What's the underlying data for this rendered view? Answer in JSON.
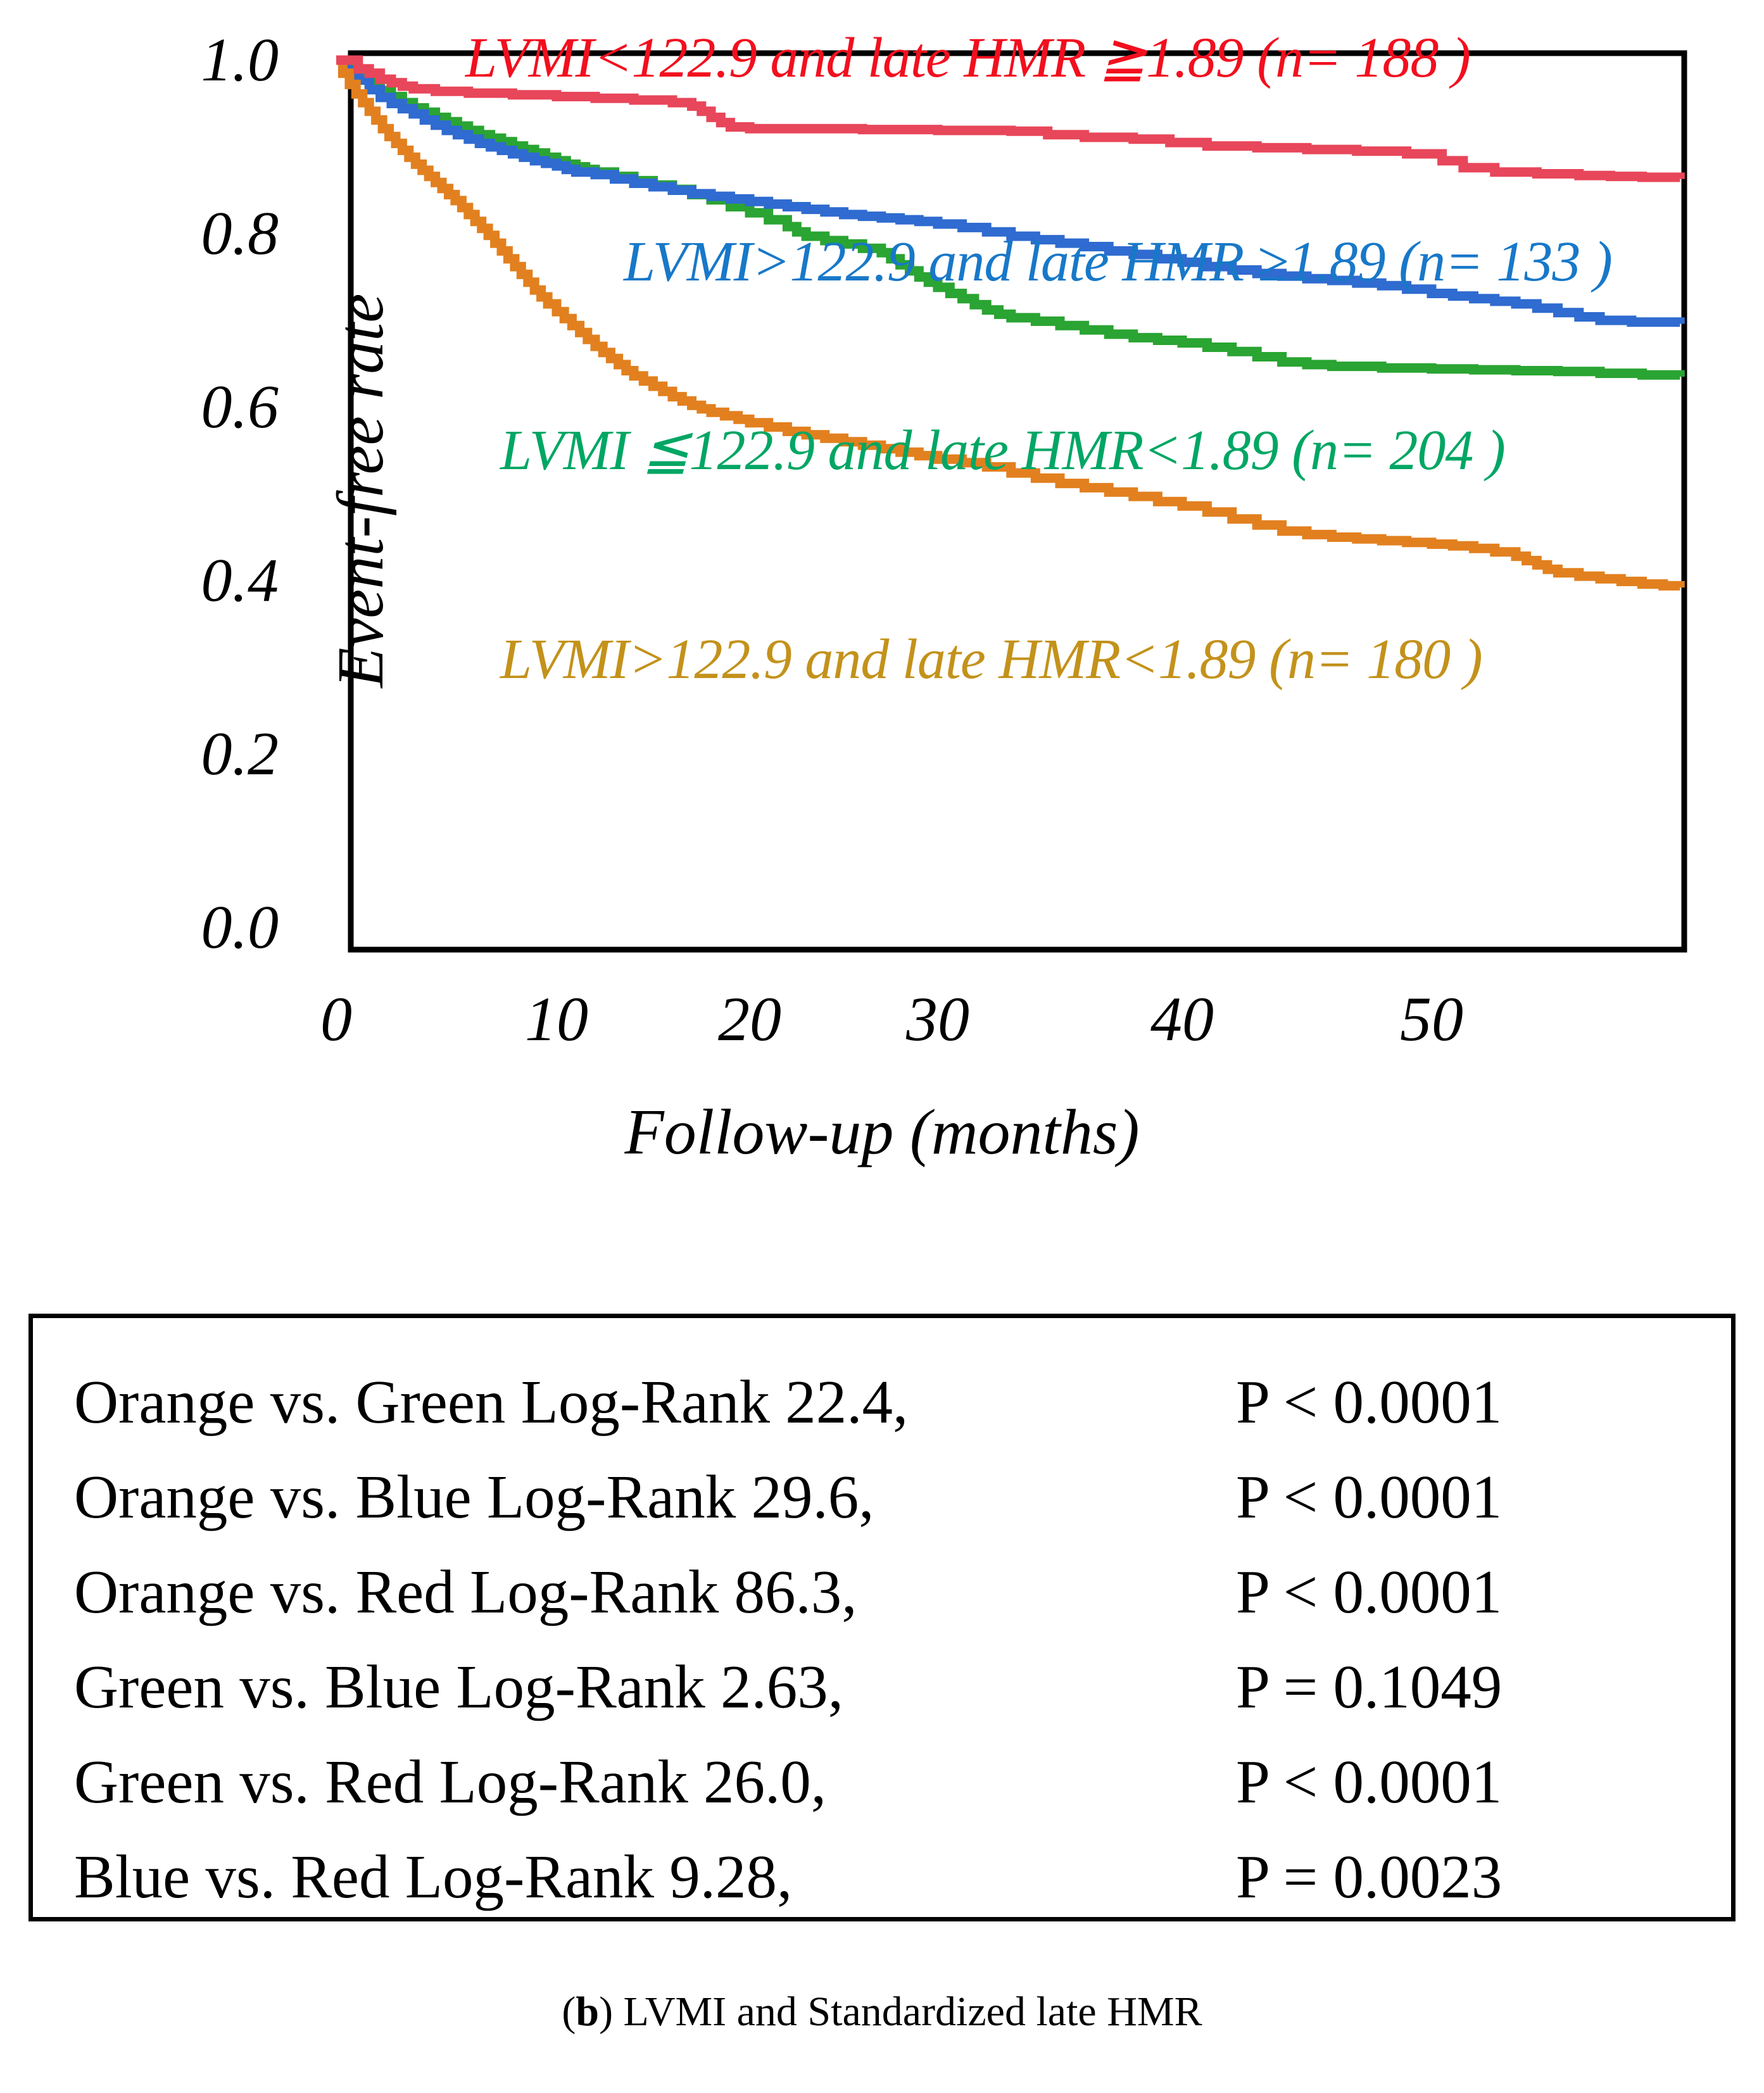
{
  "chart_data": {
    "type": "line",
    "subtype": "kaplan-meier-step",
    "title": "",
    "xlabel": "Follow-up (months)",
    "ylabel": "Event-free rate",
    "xlim": [
      0,
      62
    ],
    "ylim": [
      0.0,
      1.0
    ],
    "x_ticks": [
      0,
      10,
      20,
      30,
      40,
      50
    ],
    "y_ticks": [
      1.0,
      0.8,
      0.6,
      0.4,
      0.2,
      0.0
    ],
    "x_tick_labels": [
      "0",
      "10",
      "20",
      "30",
      "40",
      "50"
    ],
    "y_tick_labels": [
      "1.0",
      "0.8",
      "0.6",
      "0.4",
      "0.2",
      "0.0"
    ],
    "grid": false,
    "legend_position": "labels-inside-plot",
    "step": "post",
    "series": [
      {
        "name": "red",
        "label": "LVMI<122.9 and late HMR ≧1.89 (n= 188 )",
        "n": 188,
        "color": "#E8465A",
        "label_color": "#F20F1E",
        "points": [
          [
            0,
            1.0
          ],
          [
            1,
            0.99
          ],
          [
            1.5,
            0.985
          ],
          [
            2,
            0.978
          ],
          [
            2.5,
            0.974
          ],
          [
            3,
            0.97
          ],
          [
            3.5,
            0.967
          ],
          [
            4.5,
            0.964
          ],
          [
            6,
            0.962
          ],
          [
            8,
            0.96
          ],
          [
            10,
            0.958
          ],
          [
            12,
            0.956
          ],
          [
            14,
            0.954
          ],
          [
            16,
            0.951
          ],
          [
            17,
            0.947
          ],
          [
            17.5,
            0.941
          ],
          [
            18,
            0.934
          ],
          [
            18.5,
            0.928
          ],
          [
            19,
            0.923
          ],
          [
            20,
            0.921
          ],
          [
            26,
            0.92
          ],
          [
            30,
            0.919
          ],
          [
            33,
            0.918
          ],
          [
            34.5,
            0.914
          ],
          [
            36,
            0.911
          ],
          [
            38,
            0.909
          ],
          [
            39.5,
            0.905
          ],
          [
            41,
            0.901
          ],
          [
            43,
            0.899
          ],
          [
            45,
            0.897
          ],
          [
            47,
            0.895
          ],
          [
            49,
            0.892
          ],
          [
            50.5,
            0.884
          ],
          [
            51.5,
            0.876
          ],
          [
            53,
            0.871
          ],
          [
            55,
            0.869
          ],
          [
            57,
            0.867
          ],
          [
            58.5,
            0.866
          ],
          [
            60,
            0.865
          ],
          [
            61.8,
            0.863
          ]
        ]
      },
      {
        "name": "blue",
        "label": "LVMI>122.9 and late HMR ≥1.89 (n= 133 )",
        "n": 133,
        "color": "#2F6BD0",
        "label_color": "#1878C8",
        "points": [
          [
            0,
            1.0
          ],
          [
            0.5,
            0.988
          ],
          [
            1,
            0.977
          ],
          [
            1.5,
            0.966
          ],
          [
            2,
            0.957
          ],
          [
            2.5,
            0.95
          ],
          [
            3,
            0.944
          ],
          [
            3.5,
            0.938
          ],
          [
            4,
            0.931
          ],
          [
            4.5,
            0.925
          ],
          [
            5,
            0.919
          ],
          [
            5.5,
            0.914
          ],
          [
            6,
            0.909
          ],
          [
            6.5,
            0.904
          ],
          [
            7,
            0.9
          ],
          [
            7.5,
            0.896
          ],
          [
            8,
            0.892
          ],
          [
            8.5,
            0.888
          ],
          [
            9,
            0.884
          ],
          [
            9.5,
            0.881
          ],
          [
            10,
            0.878
          ],
          [
            10.5,
            0.874
          ],
          [
            11,
            0.871
          ],
          [
            12,
            0.868
          ],
          [
            13,
            0.863
          ],
          [
            14,
            0.858
          ],
          [
            15,
            0.854
          ],
          [
            16,
            0.85
          ],
          [
            17,
            0.846
          ],
          [
            18,
            0.843
          ],
          [
            19,
            0.84
          ],
          [
            20,
            0.837
          ],
          [
            21,
            0.834
          ],
          [
            22,
            0.831
          ],
          [
            23,
            0.828
          ],
          [
            24,
            0.825
          ],
          [
            25,
            0.822
          ],
          [
            26,
            0.82
          ],
          [
            27,
            0.818
          ],
          [
            28,
            0.816
          ],
          [
            29,
            0.814
          ],
          [
            30,
            0.811
          ],
          [
            31,
            0.807
          ],
          [
            32,
            0.802
          ],
          [
            33,
            0.797
          ],
          [
            34,
            0.793
          ],
          [
            35,
            0.789
          ],
          [
            36,
            0.785
          ],
          [
            37,
            0.78
          ],
          [
            38,
            0.776
          ],
          [
            39,
            0.771
          ],
          [
            40,
            0.767
          ],
          [
            41,
            0.762
          ],
          [
            42,
            0.758
          ],
          [
            43,
            0.754
          ],
          [
            44,
            0.751
          ],
          [
            45,
            0.748
          ],
          [
            46,
            0.746
          ],
          [
            47,
            0.743
          ],
          [
            48,
            0.74
          ],
          [
            49,
            0.736
          ],
          [
            50,
            0.731
          ],
          [
            51,
            0.728
          ],
          [
            52,
            0.725
          ],
          [
            53,
            0.722
          ],
          [
            54,
            0.719
          ],
          [
            55,
            0.714
          ],
          [
            56,
            0.709
          ],
          [
            57,
            0.704
          ],
          [
            58,
            0.7
          ],
          [
            59.5,
            0.698
          ],
          [
            61.8,
            0.696
          ]
        ]
      },
      {
        "name": "green",
        "label": "LVMI ≦122.9 and late HMR<1.89 (n= 204 )",
        "n": 204,
        "color": "#2AA432",
        "label_color": "#00A664",
        "points": [
          [
            0,
            1.0
          ],
          [
            0.5,
            0.992
          ],
          [
            1,
            0.983
          ],
          [
            1.5,
            0.974
          ],
          [
            2,
            0.965
          ],
          [
            2.5,
            0.958
          ],
          [
            3,
            0.951
          ],
          [
            3.5,
            0.945
          ],
          [
            4,
            0.94
          ],
          [
            4.5,
            0.934
          ],
          [
            5,
            0.929
          ],
          [
            5.5,
            0.924
          ],
          [
            6,
            0.919
          ],
          [
            6.5,
            0.914
          ],
          [
            7,
            0.91
          ],
          [
            7.5,
            0.906
          ],
          [
            8,
            0.901
          ],
          [
            8.5,
            0.897
          ],
          [
            9,
            0.893
          ],
          [
            9.5,
            0.888
          ],
          [
            10,
            0.884
          ],
          [
            10.5,
            0.88
          ],
          [
            11,
            0.877
          ],
          [
            11.5,
            0.874
          ],
          [
            12,
            0.871
          ],
          [
            13,
            0.866
          ],
          [
            14,
            0.861
          ],
          [
            15,
            0.856
          ],
          [
            16,
            0.851
          ],
          [
            17,
            0.845
          ],
          [
            18,
            0.839
          ],
          [
            19,
            0.831
          ],
          [
            20,
            0.824
          ],
          [
            21,
            0.816
          ],
          [
            22,
            0.808
          ],
          [
            22.5,
            0.802
          ],
          [
            23,
            0.797
          ],
          [
            24,
            0.792
          ],
          [
            25,
            0.788
          ],
          [
            26,
            0.783
          ],
          [
            27,
            0.778
          ],
          [
            27.5,
            0.771
          ],
          [
            28,
            0.764
          ],
          [
            28.5,
            0.757
          ],
          [
            29,
            0.75
          ],
          [
            29.5,
            0.744
          ],
          [
            30,
            0.738
          ],
          [
            30.5,
            0.731
          ],
          [
            31,
            0.725
          ],
          [
            31.5,
            0.718
          ],
          [
            32,
            0.712
          ],
          [
            32.5,
            0.707
          ],
          [
            33,
            0.703
          ],
          [
            34,
            0.699
          ],
          [
            35,
            0.694
          ],
          [
            36,
            0.689
          ],
          [
            37,
            0.684
          ],
          [
            38,
            0.68
          ],
          [
            39,
            0.677
          ],
          [
            40,
            0.674
          ],
          [
            41,
            0.669
          ],
          [
            42,
            0.664
          ],
          [
            43,
            0.658
          ],
          [
            44,
            0.652
          ],
          [
            45,
            0.649
          ],
          [
            46,
            0.647
          ],
          [
            48,
            0.645
          ],
          [
            50,
            0.644
          ],
          [
            52,
            0.643
          ],
          [
            54,
            0.642
          ],
          [
            56,
            0.641
          ],
          [
            58,
            0.639
          ],
          [
            60,
            0.637
          ],
          [
            61.8,
            0.635
          ]
        ]
      },
      {
        "name": "orange",
        "label": "LVMI>122.9 and late HMR<1.89 (n= 180 )",
        "n": 180,
        "color": "#E2801F",
        "label_color": "#C3921B",
        "points": [
          [
            0,
            1.0
          ],
          [
            0.3,
            0.985
          ],
          [
            0.6,
            0.972
          ],
          [
            0.9,
            0.961
          ],
          [
            1.2,
            0.951
          ],
          [
            1.5,
            0.941
          ],
          [
            1.8,
            0.931
          ],
          [
            2.1,
            0.921
          ],
          [
            2.4,
            0.912
          ],
          [
            2.7,
            0.904
          ],
          [
            3,
            0.896
          ],
          [
            3.3,
            0.888
          ],
          [
            3.6,
            0.88
          ],
          [
            3.9,
            0.873
          ],
          [
            4.2,
            0.866
          ],
          [
            4.5,
            0.859
          ],
          [
            4.8,
            0.852
          ],
          [
            5.1,
            0.845
          ],
          [
            5.4,
            0.838
          ],
          [
            5.7,
            0.83
          ],
          [
            6,
            0.822
          ],
          [
            6.3,
            0.814
          ],
          [
            6.6,
            0.806
          ],
          [
            6.9,
            0.798
          ],
          [
            7.2,
            0.789
          ],
          [
            7.5,
            0.78
          ],
          [
            7.8,
            0.771
          ],
          [
            8.1,
            0.762
          ],
          [
            8.4,
            0.753
          ],
          [
            8.7,
            0.744
          ],
          [
            9,
            0.735
          ],
          [
            9.3,
            0.727
          ],
          [
            9.6,
            0.719
          ],
          [
            10,
            0.71
          ],
          [
            10.4,
            0.702
          ],
          [
            10.8,
            0.694
          ],
          [
            11.2,
            0.686
          ],
          [
            11.6,
            0.678
          ],
          [
            12,
            0.67
          ],
          [
            12.4,
            0.663
          ],
          [
            12.8,
            0.656
          ],
          [
            13.2,
            0.649
          ],
          [
            13.6,
            0.642
          ],
          [
            14,
            0.636
          ],
          [
            14.5,
            0.63
          ],
          [
            15,
            0.624
          ],
          [
            15.5,
            0.618
          ],
          [
            16,
            0.612
          ],
          [
            16.5,
            0.607
          ],
          [
            17,
            0.602
          ],
          [
            17.5,
            0.598
          ],
          [
            18,
            0.594
          ],
          [
            18.7,
            0.59
          ],
          [
            19.4,
            0.586
          ],
          [
            20,
            0.582
          ],
          [
            21,
            0.577
          ],
          [
            22,
            0.572
          ],
          [
            23,
            0.568
          ],
          [
            24,
            0.564
          ],
          [
            25,
            0.56
          ],
          [
            26,
            0.556
          ],
          [
            27,
            0.552
          ],
          [
            28,
            0.548
          ],
          [
            29,
            0.544
          ],
          [
            30,
            0.54
          ],
          [
            31,
            0.536
          ],
          [
            32,
            0.531
          ],
          [
            33,
            0.524
          ],
          [
            34,
            0.518
          ],
          [
            35,
            0.512
          ],
          [
            36,
            0.507
          ],
          [
            37,
            0.502
          ],
          [
            38,
            0.497
          ],
          [
            39,
            0.491
          ],
          [
            40,
            0.486
          ],
          [
            41,
            0.479
          ],
          [
            42,
            0.471
          ],
          [
            43,
            0.464
          ],
          [
            44,
            0.457
          ],
          [
            45,
            0.453
          ],
          [
            46,
            0.45
          ],
          [
            47,
            0.448
          ],
          [
            48,
            0.446
          ],
          [
            49,
            0.444
          ],
          [
            50,
            0.442
          ],
          [
            51,
            0.44
          ],
          [
            52,
            0.437
          ],
          [
            53,
            0.433
          ],
          [
            54,
            0.428
          ],
          [
            54.5,
            0.423
          ],
          [
            55,
            0.418
          ],
          [
            55.5,
            0.413
          ],
          [
            56,
            0.409
          ],
          [
            57,
            0.405
          ],
          [
            58,
            0.402
          ],
          [
            59,
            0.399
          ],
          [
            60,
            0.396
          ],
          [
            61,
            0.394
          ],
          [
            61.8,
            0.392
          ]
        ]
      }
    ]
  },
  "stats_box": {
    "lines": [
      {
        "comparison": "Orange vs. Green Log-Rank 22.4,",
        "p": "P < 0.0001"
      },
      {
        "comparison": "Orange vs. Blue Log-Rank 29.6,",
        "p": "P < 0.0001"
      },
      {
        "comparison": "Orange vs. Red Log-Rank 86.3,",
        "p": "P < 0.0001"
      },
      {
        "comparison": "Green vs. Blue Log-Rank 2.63,",
        "p": "P = 0.1049"
      },
      {
        "comparison": "Green vs. Red Log-Rank 26.0,",
        "p": "P < 0.0001"
      },
      {
        "comparison": "Blue vs. Red Log-Rank 9.28,",
        "p": "P = 0.0023"
      }
    ]
  },
  "caption": {
    "pre": "(",
    "bold": "b",
    "post": ") LVMI and Standardized late HMR"
  }
}
